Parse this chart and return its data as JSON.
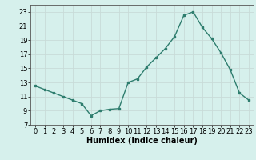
{
  "x": [
    0,
    1,
    2,
    3,
    4,
    5,
    6,
    7,
    8,
    9,
    10,
    11,
    12,
    13,
    14,
    15,
    16,
    17,
    18,
    19,
    20,
    21,
    22,
    23
  ],
  "y": [
    12.5,
    12.0,
    11.5,
    11.0,
    10.5,
    10.0,
    8.3,
    9.0,
    9.2,
    9.3,
    13.0,
    13.5,
    15.2,
    16.5,
    17.8,
    19.5,
    22.5,
    23.0,
    20.8,
    19.2,
    17.2,
    14.8,
    11.5,
    10.5
  ],
  "title": "",
  "xlabel": "Humidex (Indice chaleur)",
  "line_color": "#2e7d6e",
  "marker": "s",
  "marker_size": 2,
  "bg_color": "#d6f0ec",
  "grid_color": "#c8dbd8",
  "xlim": [
    -0.5,
    23.5
  ],
  "ylim": [
    7,
    24
  ],
  "yticks": [
    7,
    9,
    11,
    13,
    15,
    17,
    19,
    21,
    23
  ],
  "xticks": [
    0,
    1,
    2,
    3,
    4,
    5,
    6,
    7,
    8,
    9,
    10,
    11,
    12,
    13,
    14,
    15,
    16,
    17,
    18,
    19,
    20,
    21,
    22,
    23
  ],
  "tick_fontsize": 6,
  "xlabel_fontsize": 7
}
